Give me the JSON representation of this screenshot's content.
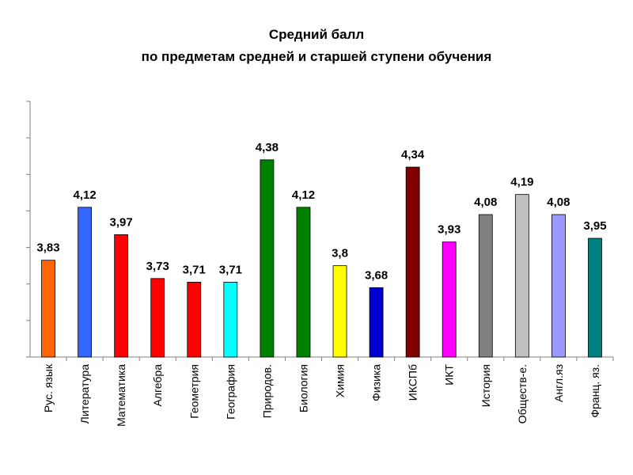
{
  "chart_data": {
    "type": "bar",
    "title_lines": [
      "Средний балл",
      "по предметам средней и старшей ступени обучения"
    ],
    "categories": [
      "Рус. язык",
      "Литература",
      "Математика",
      "Алгебра",
      "Геометрия",
      "География",
      "Природов.",
      "Биология",
      "Химия",
      "Физика",
      "ИКСПб",
      "ИКТ",
      "История",
      "Обществ-е.",
      "Англ.яз",
      "Франц. яз."
    ],
    "values": [
      3.83,
      4.12,
      3.97,
      3.73,
      3.71,
      3.71,
      4.38,
      4.12,
      3.8,
      3.68,
      4.34,
      3.93,
      4.08,
      4.19,
      4.08,
      3.95
    ],
    "value_labels": [
      "3,83",
      "4,12",
      "3,97",
      "3,73",
      "3,71",
      "3,71",
      "4,38",
      "4,12",
      "3,8",
      "3,68",
      "4,34",
      "3,93",
      "4,08",
      "4,19",
      "4,08",
      "3,95"
    ],
    "colors": [
      "#ff6600",
      "#3366ff",
      "#ff0000",
      "#ff0000",
      "#ff0000",
      "#00ffff",
      "#008000",
      "#008000",
      "#ffff00",
      "#0000cc",
      "#800000",
      "#ff00ff",
      "#808080",
      "#c0c0c0",
      "#9999ff",
      "#008080"
    ],
    "ylim": [
      3.3,
      4.7
    ],
    "ytick_step": 0.2,
    "ytick_labels_shown": false,
    "grid": false,
    "xlabel": "",
    "ylabel": ""
  }
}
